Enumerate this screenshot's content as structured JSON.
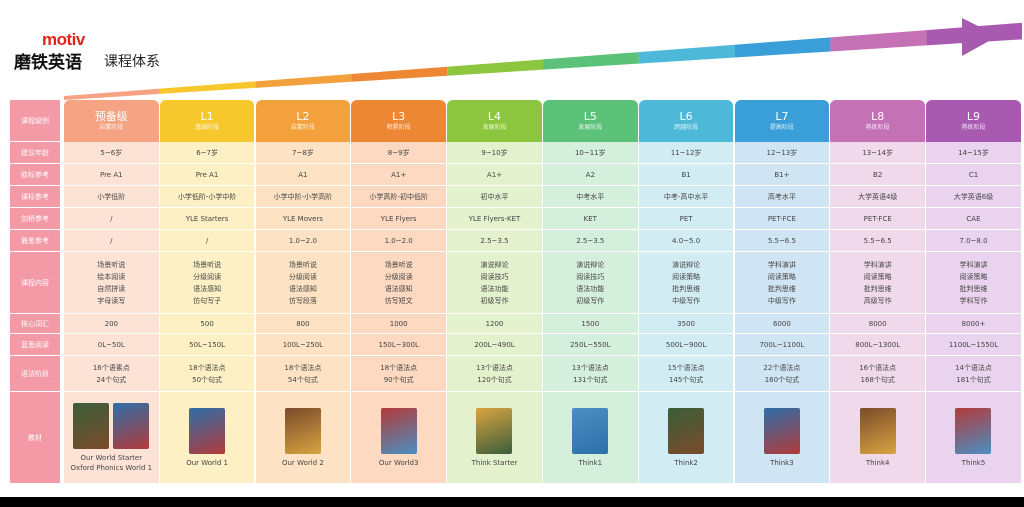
{
  "brand": {
    "logo": "motiv",
    "name": "磨铁英语",
    "subtitle": "课程体系"
  },
  "row_headers": [
    "课程级别",
    "建议年龄",
    "欧标参考",
    "课标参考",
    "剑桥参考",
    "雅思参考",
    "课程内容",
    "核心词汇",
    "蓝思阅读",
    "语法阶段",
    "教材"
  ],
  "levels": [
    {
      "name": "预备级",
      "stage": "启蒙阶段",
      "color": "#f5a383",
      "tint": "#fde3d6",
      "age": "5~6岁",
      "cefr": "Pre A1",
      "curriculum": "小学低阶",
      "cambridge": "/",
      "ielts": "/",
      "content": [
        "场景听说",
        "绘本阅读",
        "自然拼读",
        "字母读写"
      ],
      "vocab": "200",
      "lexile": "0L~50L",
      "grammar": [
        "16个语素点",
        "24个句式"
      ],
      "book": [
        "Our World Starter",
        "Oxford Phonics World 1"
      ]
    },
    {
      "name": "L1",
      "stage": "基础阶段",
      "color": "#f6c82e",
      "tint": "#fcf0c4",
      "age": "6~7岁",
      "cefr": "Pre A1",
      "curriculum": "小学低阶-小学中阶",
      "cambridge": "YLE Starters",
      "ielts": "/",
      "content": [
        "场景听说",
        "分级阅读",
        "语法感知",
        "仿句写子"
      ],
      "vocab": "500",
      "lexile": "50L~150L",
      "grammar": [
        "18个语法点",
        "50个句式"
      ],
      "book": [
        "Our World 1"
      ]
    },
    {
      "name": "L2",
      "stage": "启蒙阶段",
      "color": "#f2a13d",
      "tint": "#fde3c4",
      "age": "7~8岁",
      "cefr": "A1",
      "curriculum": "小学中阶-小学高阶",
      "cambridge": "YLE Movers",
      "ielts": "1.0~2.0",
      "content": [
        "场景听说",
        "分级阅读",
        "语法感知",
        "仿写段落"
      ],
      "vocab": "800",
      "lexile": "100L~250L",
      "grammar": [
        "18个语法点",
        "54个句式"
      ],
      "book": [
        "Our World 2"
      ]
    },
    {
      "name": "L3",
      "stage": "积累阶段",
      "color": "#ee8733",
      "tint": "#fcd9c0",
      "age": "8~9岁",
      "cefr": "A1+",
      "curriculum": "小学高阶-初中低阶",
      "cambridge": "YLE Flyers",
      "ielts": "1.0~2.0",
      "content": [
        "场景听说",
        "分级阅读",
        "语法感知",
        "仿写短文"
      ],
      "vocab": "1000",
      "lexile": "150L~300L",
      "grammar": [
        "18个语法点",
        "90个句式"
      ],
      "book": [
        "Our World3"
      ]
    },
    {
      "name": "L4",
      "stage": "发展阶段",
      "color": "#8cc63f",
      "tint": "#e3f1cd",
      "age": "9~10岁",
      "cefr": "A1+",
      "curriculum": "初中水平",
      "cambridge": "YLE Flyers-KET",
      "ielts": "2.5~3.5",
      "content": [
        "演说辩论",
        "阅读技巧",
        "语法功能",
        "初级写作"
      ],
      "vocab": "1200",
      "lexile": "200L~490L",
      "grammar": [
        "13个语法点",
        "120个句式"
      ],
      "book": [
        "Think Starter"
      ]
    },
    {
      "name": "L5",
      "stage": "发展阶段",
      "color": "#5cc279",
      "tint": "#d4efdb",
      "age": "10~11岁",
      "cefr": "A2",
      "curriculum": "中考水平",
      "cambridge": "KET",
      "ielts": "2.5~3.5",
      "content": [
        "演说辩论",
        "阅读技巧",
        "语法功能",
        "初级写作"
      ],
      "vocab": "1500",
      "lexile": "250L~550L",
      "grammar": [
        "13个语法点",
        "131个句式"
      ],
      "book": [
        "Think1"
      ]
    },
    {
      "name": "L6",
      "stage": "跨越阶段",
      "color": "#4eb8d8",
      "tint": "#d2ecf4",
      "age": "11~12岁",
      "cefr": "B1",
      "curriculum": "中考-高中水平",
      "cambridge": "PET",
      "ielts": "4.0~5.0",
      "content": [
        "演说辩论",
        "阅读策略",
        "批判思维",
        "中级写作"
      ],
      "vocab": "3500",
      "lexile": "500L~900L",
      "grammar": [
        "15个语法点",
        "145个句式"
      ],
      "book": [
        "Think2"
      ]
    },
    {
      "name": "L7",
      "stage": "提高阶段",
      "color": "#3a9fd8",
      "tint": "#cfe5f4",
      "age": "12~13岁",
      "cefr": "B1+",
      "curriculum": "高考水平",
      "cambridge": "PET-FCE",
      "ielts": "5.5~6.5",
      "content": [
        "学科演讲",
        "阅读策略",
        "批判思维",
        "中级写作"
      ],
      "vocab": "6000",
      "lexile": "700L~1100L",
      "grammar": [
        "22个语法点",
        "160个句式"
      ],
      "book": [
        "Think3"
      ]
    },
    {
      "name": "L8",
      "stage": "熟练阶段",
      "color": "#c471b6",
      "tint": "#f1d9ec",
      "age": "13~14岁",
      "cefr": "B2",
      "curriculum": "大学英语4级",
      "cambridge": "PET-FCE",
      "ielts": "5.5~6.5",
      "content": [
        "学科演讲",
        "阅读策略",
        "批判思维",
        "高级写作"
      ],
      "vocab": "8000",
      "lexile": "800L~1300L",
      "grammar": [
        "16个语法点",
        "168个句式"
      ],
      "book": [
        "Think4"
      ]
    },
    {
      "name": "L9",
      "stage": "熟练阶段",
      "color": "#a85ab0",
      "tint": "#ead3ee",
      "age": "14~15岁",
      "cefr": "C1",
      "curriculum": "大学英语6级",
      "cambridge": "CAE",
      "ielts": "7.0~8.0",
      "content": [
        "学科演讲",
        "阅读策略",
        "批判思维",
        "学科写作"
      ],
      "vocab": "8000+",
      "lexile": "1100L~1550L",
      "grammar": [
        "14个语法点",
        "181个句式"
      ],
      "book": [
        "Think5"
      ]
    }
  ],
  "arrow_colors": [
    "#f5a383",
    "#f6c82e",
    "#f2a13d",
    "#ee8733",
    "#8cc63f",
    "#5cc279",
    "#4eb8d8",
    "#3a9fd8",
    "#c471b6",
    "#a85ab0"
  ]
}
